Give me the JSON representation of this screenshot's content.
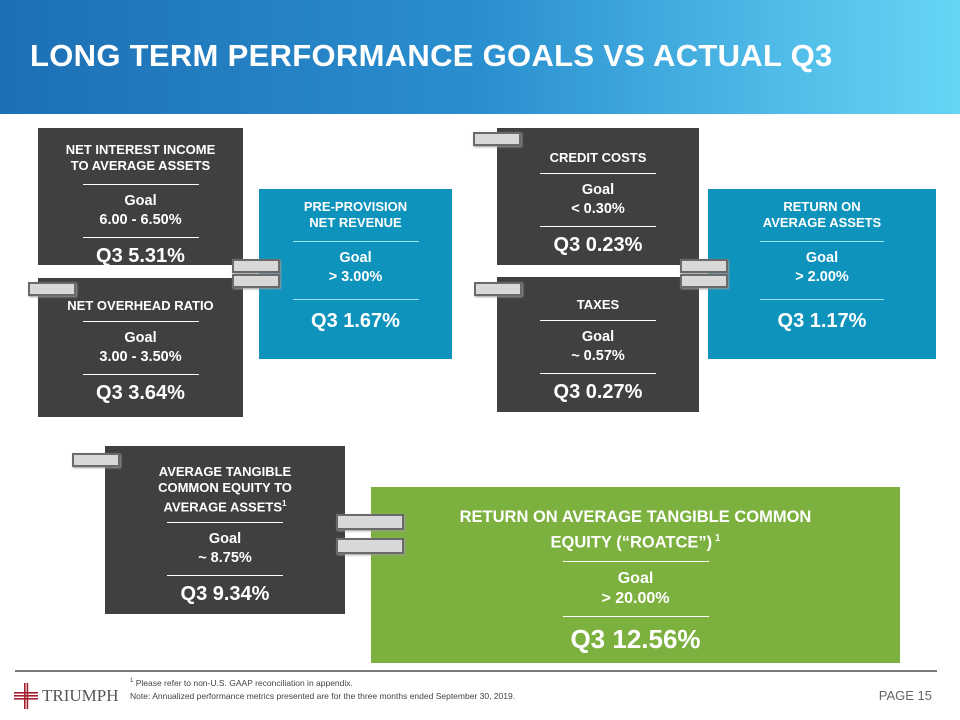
{
  "title": "LONG TERM PERFORMANCE GOALS VS ACTUAL Q3",
  "boxes": {
    "nii": {
      "h1": "NET INTEREST INCOME",
      "h2": "TO AVERAGE ASSETS",
      "goal": "Goal",
      "goal_value": "6.00 - 6.50%",
      "actual": "Q3 5.31%"
    },
    "overhead": {
      "h1": "NET OVERHEAD RATIO",
      "goal": "Goal",
      "goal_value": "3.00 - 3.50%",
      "actual": "Q3 3.64%"
    },
    "ppnr": {
      "h1": "PRE-PROVISION",
      "h2": "NET REVENUE",
      "goal": "Goal",
      "goal_value": "> 3.00%",
      "actual": "Q3 1.67%"
    },
    "credit": {
      "h1": "CREDIT COSTS",
      "goal": "Goal",
      "goal_value": "< 0.30%",
      "actual": "Q3 0.23%"
    },
    "taxes": {
      "h1": "TAXES",
      "goal": "Goal",
      "goal_value": "~ 0.57%",
      "actual": "Q3 0.27%"
    },
    "roaa": {
      "h1": "RETURN ON",
      "h2": "AVERAGE ASSETS",
      "goal": "Goal",
      "goal_value": "> 2.00%",
      "actual": "Q3 1.17%"
    },
    "atce": {
      "h1": "AVERAGE TANGIBLE",
      "h2": "COMMON EQUITY TO",
      "h3": "AVERAGE ASSETS",
      "sup": "1",
      "goal": "Goal",
      "goal_value": "~ 8.75%",
      "actual": "Q3 9.34%"
    },
    "roatce": {
      "h1": "RETURN ON AVERAGE TANGIBLE COMMON",
      "h2": "EQUITY (“ROATCE”)",
      "sup": " 1",
      "goal": "Goal",
      "goal_value": "> 20.00%",
      "actual": "Q3 12.56%"
    }
  },
  "colors": {
    "dark": "#404040",
    "blue": "#0e93bc",
    "green": "#7db13f",
    "header_start": "#1d6fb4",
    "header_end": "#66d6f6"
  },
  "footer": {
    "footnote_mark": "1",
    "footnote": " Please refer to non-U.S. GAAP reconciliation in appendix.",
    "note": "Note: Annualized performance metrics presented are for the three months ended September 30, 2019.",
    "logo": "TRIUMPH",
    "page": "PAGE 15"
  }
}
